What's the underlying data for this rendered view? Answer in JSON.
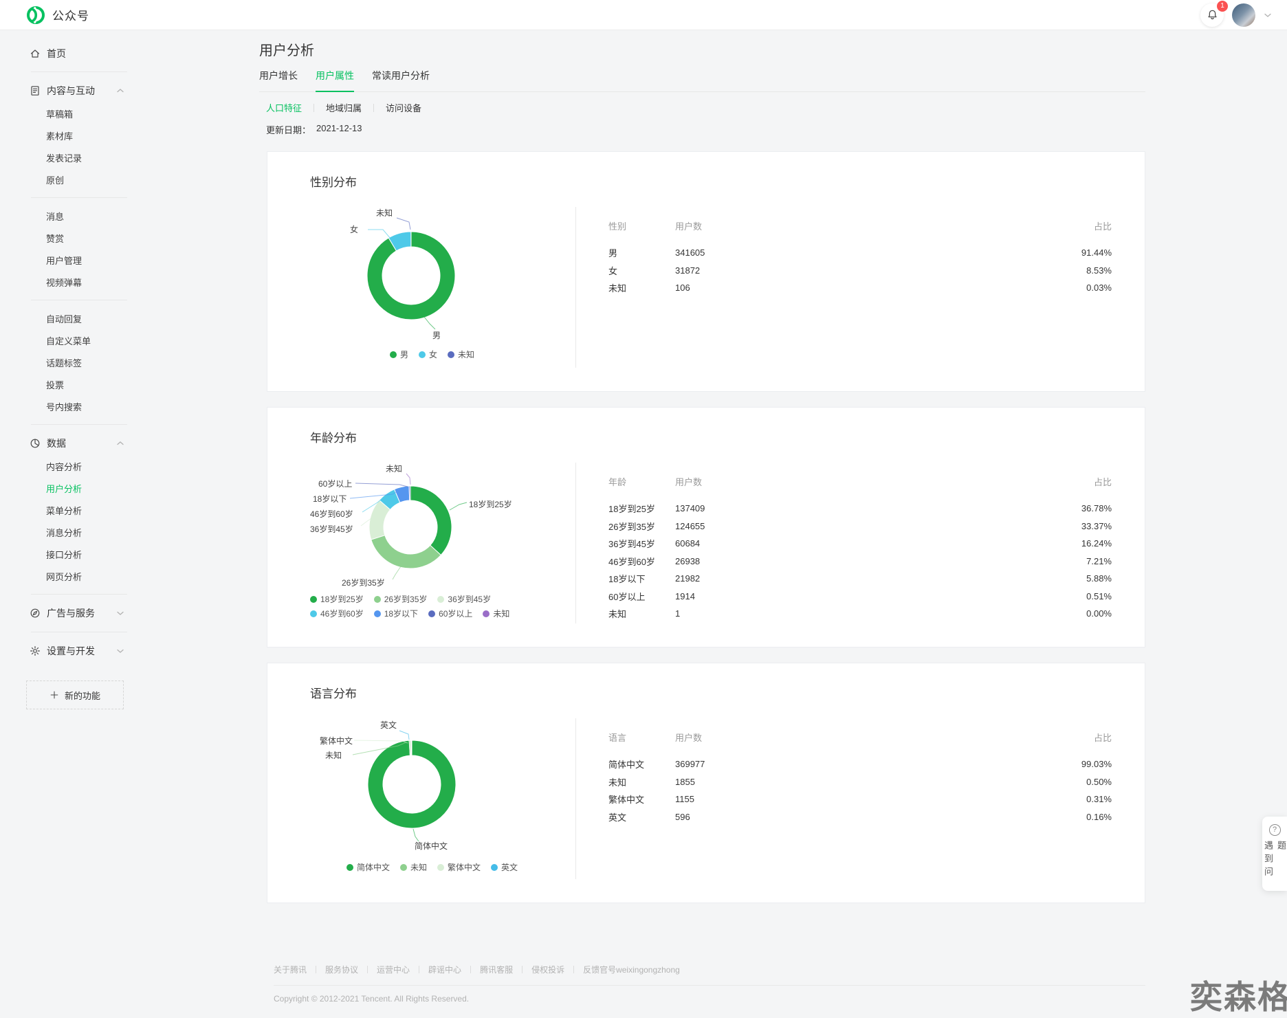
{
  "header": {
    "brand": "公众号",
    "badge": "1"
  },
  "sidebar": {
    "home": "首页",
    "groups": [
      {
        "label": "内容与互动"
      },
      {
        "label": "数据"
      },
      {
        "label": "广告与服务"
      },
      {
        "label": "设置与开发"
      }
    ],
    "content_items_a": [
      "草稿箱",
      "素材库",
      "发表记录",
      "原创"
    ],
    "content_items_b": [
      "消息",
      "赞赏",
      "用户管理",
      "视频弹幕"
    ],
    "content_items_c": [
      "自动回复",
      "自定义菜单",
      "话题标签",
      "投票",
      "号内搜索"
    ],
    "data_items": [
      "内容分析",
      "用户分析",
      "菜单分析",
      "消息分析",
      "接口分析",
      "网页分析"
    ],
    "new_feature": "新的功能"
  },
  "main": {
    "title": "用户分析",
    "tabs": [
      "用户增长",
      "用户属性",
      "常读用户分析"
    ],
    "subtabs": [
      "人口特征",
      "地域归属",
      "访问设备"
    ],
    "update_label": "更新日期：",
    "update_date": "2021-12-13"
  },
  "chart_data": [
    {
      "type": "pie",
      "title": "性别分布",
      "columns": [
        "性别",
        "用户数",
        "占比"
      ],
      "legend_position": "bottom",
      "slices": [
        {
          "name": "男",
          "value": 341605,
          "pct": "91.44%",
          "pct_value": 91.44,
          "color": "#23ad4a"
        },
        {
          "name": "女",
          "value": 31872,
          "pct": "8.53%",
          "pct_value": 8.53,
          "color": "#4ec9e8"
        },
        {
          "name": "未知",
          "value": 106,
          "pct": "0.03%",
          "pct_value": 0.03,
          "color": "#5a6cbf"
        }
      ]
    },
    {
      "type": "pie",
      "title": "年龄分布",
      "columns": [
        "年龄",
        "用户数",
        "占比"
      ],
      "legend_position": "bottom",
      "slices": [
        {
          "name": "18岁到25岁",
          "value": 137409,
          "pct": "36.78%",
          "pct_value": 36.78,
          "color": "#23ad4a"
        },
        {
          "name": "26岁到35岁",
          "value": 124655,
          "pct": "33.37%",
          "pct_value": 33.37,
          "color": "#8ed08e"
        },
        {
          "name": "36岁到45岁",
          "value": 60684,
          "pct": "16.24%",
          "pct_value": 16.24,
          "color": "#d9eed6"
        },
        {
          "name": "46岁到60岁",
          "value": 26938,
          "pct": "7.21%",
          "pct_value": 7.21,
          "color": "#4ec9e8"
        },
        {
          "name": "18岁以下",
          "value": 21982,
          "pct": "5.88%",
          "pct_value": 5.88,
          "color": "#5596ef"
        },
        {
          "name": "60岁以上",
          "value": 1914,
          "pct": "0.51%",
          "pct_value": 0.51,
          "color": "#5a6cbf"
        },
        {
          "name": "未知",
          "value": 1,
          "pct": "0.00%",
          "pct_value": 0.004,
          "color": "#9a6ec8"
        }
      ]
    },
    {
      "type": "pie",
      "title": "语言分布",
      "columns": [
        "语言",
        "用户数",
        "占比"
      ],
      "legend_position": "bottom",
      "slices": [
        {
          "name": "简体中文",
          "value": 369977,
          "pct": "99.03%",
          "pct_value": 99.03,
          "color": "#23ad4a"
        },
        {
          "name": "未知",
          "value": 1855,
          "pct": "0.50%",
          "pct_value": 0.5,
          "color": "#8ed08e"
        },
        {
          "name": "繁体中文",
          "value": 1155,
          "pct": "0.31%",
          "pct_value": 0.31,
          "color": "#d9eed6"
        },
        {
          "name": "英文",
          "value": 596,
          "pct": "0.16%",
          "pct_value": 0.16,
          "color": "#45bce8"
        }
      ]
    }
  ],
  "help_widget": {
    "label": "遇到问题"
  },
  "footer": {
    "links": [
      "关于腾讯",
      "服务协议",
      "运营中心",
      "辟谣中心",
      "腾讯客服",
      "侵权投诉",
      "反馈官号weixingongzhong"
    ],
    "copyright": "Copyright © 2012-2021 Tencent. All Rights Reserved."
  },
  "watermark": "奕森格"
}
